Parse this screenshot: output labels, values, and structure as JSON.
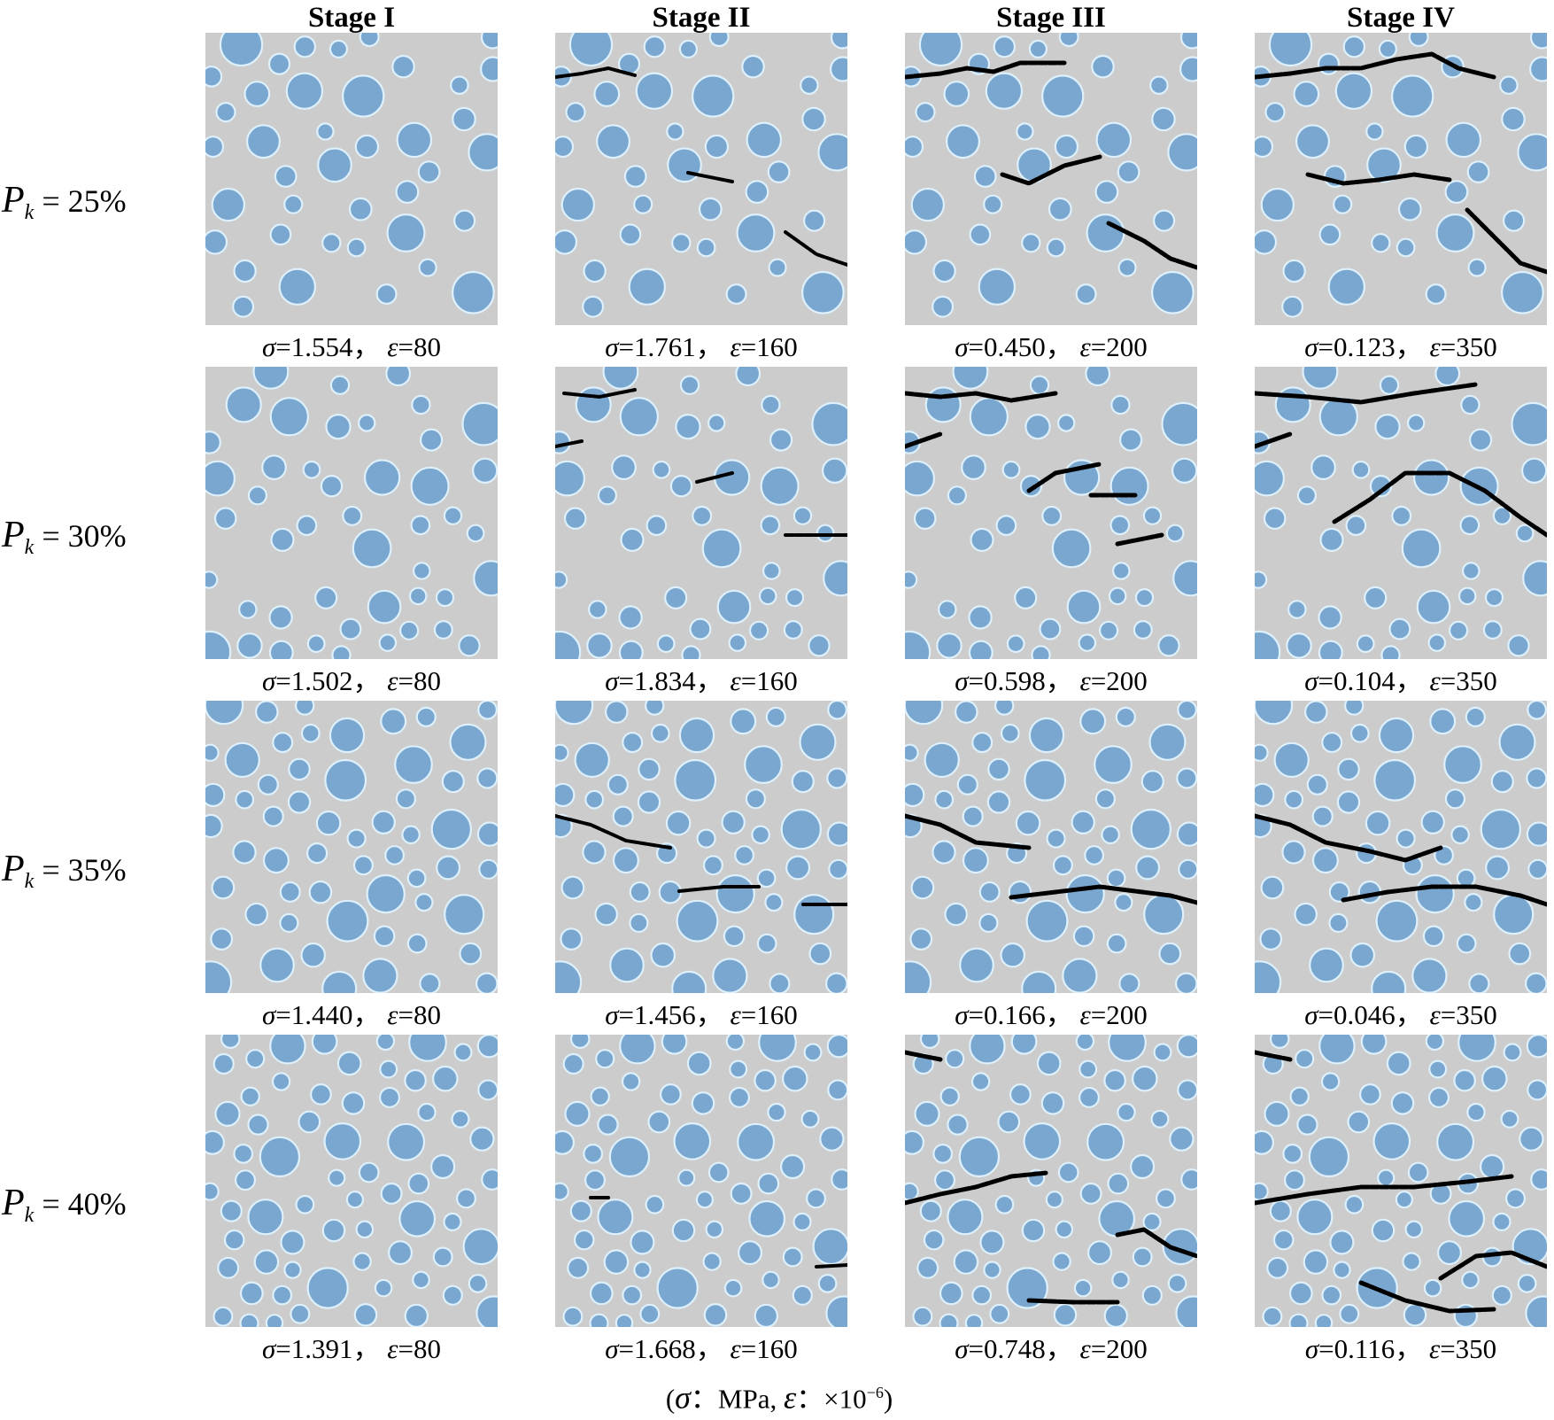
{
  "stages": [
    "Stage I",
    "Stage II",
    "Stage III",
    "Stage IV"
  ],
  "rows": [
    {
      "p_label": "P",
      "p_sub": "k",
      "p_value": " = 25%",
      "captions": [
        {
          "sigma": "1.554",
          "epsilon": "80"
        },
        {
          "sigma": "1.761",
          "epsilon": "160"
        },
        {
          "sigma": "0.450",
          "epsilon": "200"
        },
        {
          "sigma": "0.123",
          "epsilon": "350"
        }
      ]
    },
    {
      "p_label": "P",
      "p_sub": "k",
      "p_value": " = 30%",
      "captions": [
        {
          "sigma": "1.502",
          "epsilon": "80"
        },
        {
          "sigma": "1.834",
          "epsilon": "160"
        },
        {
          "sigma": "0.598",
          "epsilon": "200"
        },
        {
          "sigma": "0.104",
          "epsilon": "350"
        }
      ]
    },
    {
      "p_label": "P",
      "p_sub": "k",
      "p_value": " = 35%",
      "captions": [
        {
          "sigma": "1.440",
          "epsilon": "80"
        },
        {
          "sigma": "1.456",
          "epsilon": "160"
        },
        {
          "sigma": "0.166",
          "epsilon": "200"
        },
        {
          "sigma": "0.046",
          "epsilon": "350"
        }
      ]
    },
    {
      "p_label": "P",
      "p_sub": "k",
      "p_value": " = 40%",
      "captions": [
        {
          "sigma": "1.391",
          "epsilon": "80"
        },
        {
          "sigma": "1.668",
          "epsilon": "160"
        },
        {
          "sigma": "0.748",
          "epsilon": "200"
        },
        {
          "sigma": "0.116",
          "epsilon": "350"
        }
      ]
    }
  ],
  "caption_format": {
    "sigma_symbol": "σ",
    "epsilon_symbol": "ε",
    "separator": "，"
  },
  "footer": {
    "open": "(",
    "sigma_symbol": "σ",
    "sigma_unit": "：MPa,",
    "epsilon_symbol": "ε",
    "epsilon_unit": "：×10",
    "epsilon_exp": "−6",
    "close": ")"
  },
  "colors": {
    "matrix": "#cccccc",
    "aggregate": "#7aa7cf",
    "itz": "#ddf0fb",
    "crack": "#000000"
  }
}
